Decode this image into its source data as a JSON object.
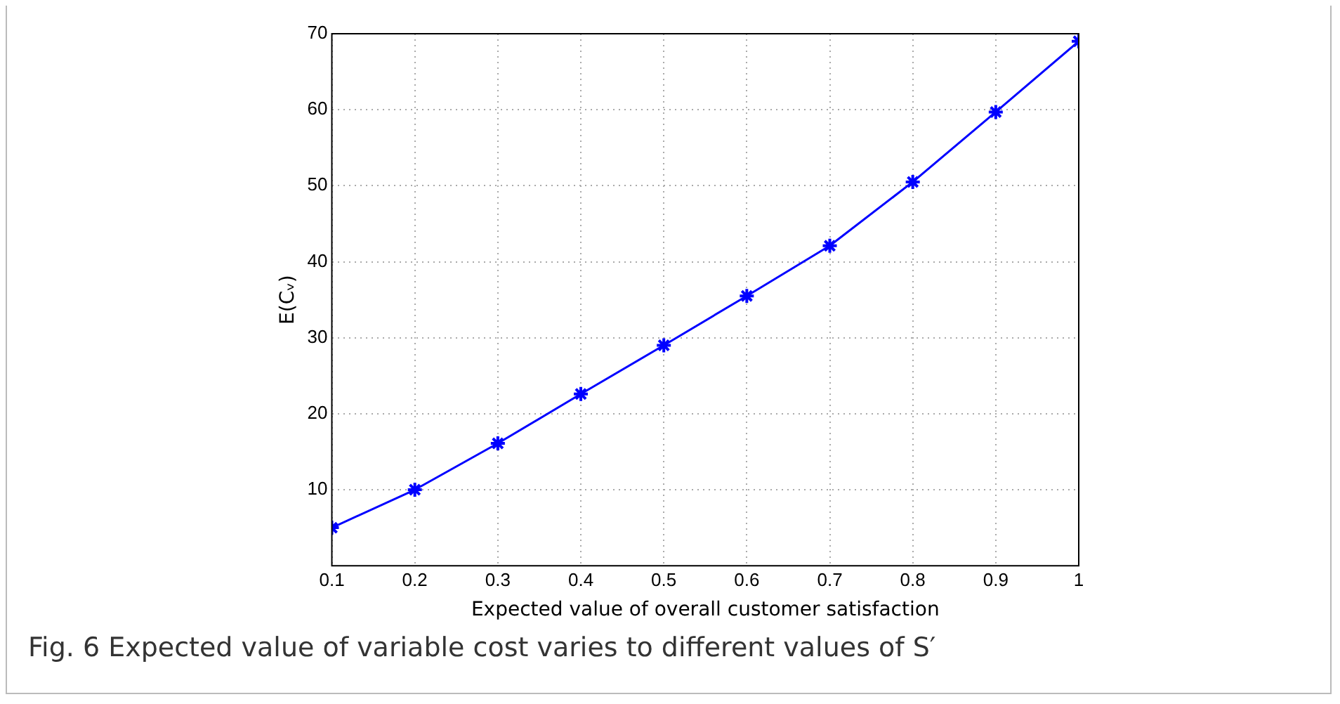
{
  "chart_data": {
    "type": "line",
    "xlabel": "Expected value of overall customer satisfaction",
    "ylabel": "E(Cᵥ)",
    "x": [
      0.1,
      0.2,
      0.3,
      0.4,
      0.5,
      0.6,
      0.7,
      0.8,
      0.9,
      1
    ],
    "series": [
      {
        "color": "#0000ff",
        "values": [
          5.0,
          10.0,
          16.1,
          22.6,
          29.0,
          35.5,
          42.1,
          50.5,
          59.7,
          69.0
        ]
      }
    ],
    "xlim": [
      0.1,
      1
    ],
    "xticks": [
      0.1,
      0.2,
      0.3,
      0.4,
      0.5,
      0.6,
      0.7,
      0.8,
      0.9,
      1
    ],
    "ylim": [
      0,
      70
    ],
    "yticks": [
      10,
      20,
      30,
      40,
      50,
      60,
      70
    ],
    "grid": true,
    "legend": false,
    "marker": "cross",
    "line_style": "solid",
    "annotations": [
      "Fig. 6 Expected value of variable cost varies to different values of S′"
    ]
  }
}
